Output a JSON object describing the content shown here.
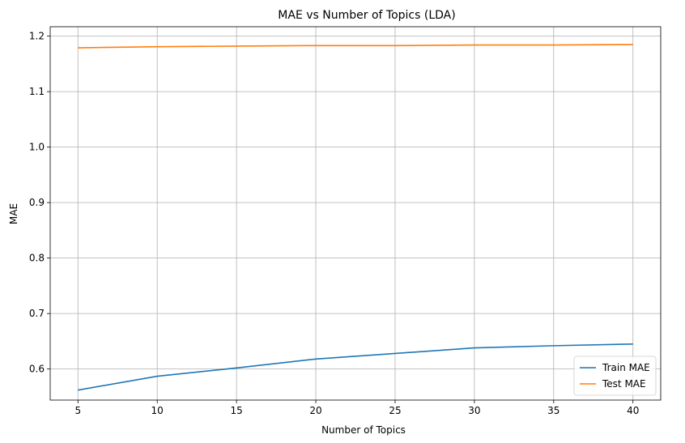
{
  "chart_data": {
    "type": "line",
    "title": "MAE vs Number of Topics (LDA)",
    "xlabel": "Number of Topics",
    "ylabel": "MAE",
    "x": [
      5,
      10,
      15,
      20,
      25,
      30,
      35,
      40
    ],
    "xlim": [
      3.25,
      41.75
    ],
    "ylim": [
      0.544,
      1.217
    ],
    "xticks": [
      5,
      10,
      15,
      20,
      25,
      30,
      35,
      40
    ],
    "yticks": [
      0.6,
      0.7,
      0.8,
      0.9,
      1.0,
      1.1,
      1.2
    ],
    "ytick_labels": [
      "0.6",
      "0.7",
      "0.8",
      "0.9",
      "1.0",
      "1.1",
      "1.2"
    ],
    "grid": true,
    "legend_position": "lower right",
    "series": [
      {
        "name": "Train MAE",
        "color": "#1f77b4",
        "values": [
          0.562,
          0.587,
          0.602,
          0.618,
          0.628,
          0.638,
          0.642,
          0.645
        ]
      },
      {
        "name": "Test MAE",
        "color": "#ff7f0e",
        "values": [
          1.179,
          1.181,
          1.182,
          1.183,
          1.183,
          1.184,
          1.184,
          1.185
        ]
      }
    ]
  }
}
